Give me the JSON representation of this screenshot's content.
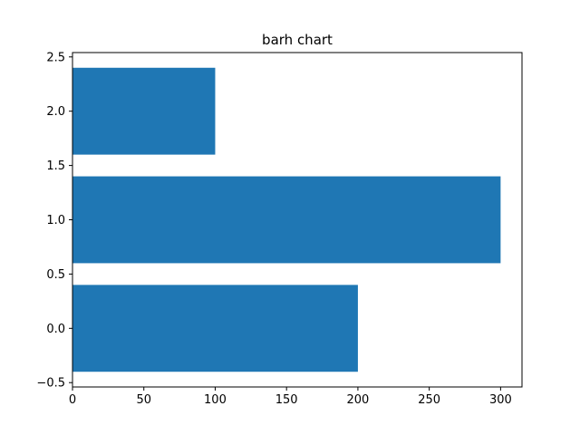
{
  "chart_data": {
    "type": "bar",
    "orientation": "horizontal",
    "title": "barh chart",
    "xlabel": "",
    "ylabel": "",
    "categories": [
      0,
      1,
      2
    ],
    "values": [
      200,
      300,
      100
    ],
    "bar_height": 0.8,
    "xlim": [
      0,
      315
    ],
    "ylim": [
      -0.54,
      2.54
    ],
    "xticks": [
      0,
      50,
      100,
      150,
      200,
      250,
      300
    ],
    "xtick_labels": [
      "0",
      "50",
      "100",
      "150",
      "200",
      "250",
      "300"
    ],
    "yticks": [
      -0.5,
      0.0,
      0.5,
      1.0,
      1.5,
      2.0,
      2.5
    ],
    "ytick_labels": [
      "−0.5",
      "0.0",
      "0.5",
      "1.0",
      "1.5",
      "2.0",
      "2.5"
    ],
    "grid": false,
    "legend": "none",
    "bar_color": "#1f77b4"
  }
}
